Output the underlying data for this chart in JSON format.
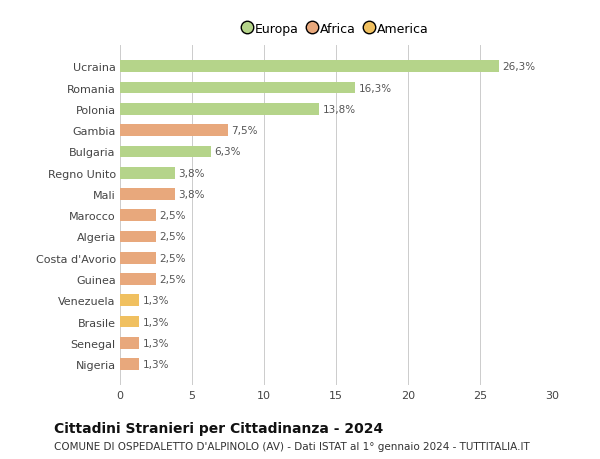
{
  "categories": [
    "Nigeria",
    "Senegal",
    "Brasile",
    "Venezuela",
    "Guinea",
    "Costa d'Avorio",
    "Algeria",
    "Marocco",
    "Mali",
    "Regno Unito",
    "Bulgaria",
    "Gambia",
    "Polonia",
    "Romania",
    "Ucraina"
  ],
  "values": [
    1.3,
    1.3,
    1.3,
    1.3,
    2.5,
    2.5,
    2.5,
    2.5,
    3.8,
    3.8,
    6.3,
    7.5,
    13.8,
    16.3,
    26.3
  ],
  "colors": [
    "#e8a87c",
    "#e8a87c",
    "#f0c060",
    "#f0c060",
    "#e8a87c",
    "#e8a87c",
    "#e8a87c",
    "#e8a87c",
    "#e8a87c",
    "#b5d48a",
    "#b5d48a",
    "#e8a87c",
    "#b5d48a",
    "#b5d48a",
    "#b5d48a"
  ],
  "legend": [
    {
      "label": "Europa",
      "color": "#b5d48a"
    },
    {
      "label": "Africa",
      "color": "#e8a87c"
    },
    {
      "label": "America",
      "color": "#f0c060"
    }
  ],
  "title": "Cittadini Stranieri per Cittadinanza - 2024",
  "subtitle": "COMUNE DI OSPEDALETTO D'ALPINOLO (AV) - Dati ISTAT al 1° gennaio 2024 - TUTTITALIA.IT",
  "xlim": [
    0,
    30
  ],
  "xticks": [
    0,
    5,
    10,
    15,
    20,
    25,
    30
  ],
  "bar_height": 0.55,
  "bg_color": "#ffffff",
  "grid_color": "#cccccc",
  "label_color": "#444444",
  "value_label_color": "#555555",
  "title_fontsize": 10,
  "subtitle_fontsize": 7.5,
  "tick_fontsize": 8,
  "bar_label_fontsize": 7.5
}
